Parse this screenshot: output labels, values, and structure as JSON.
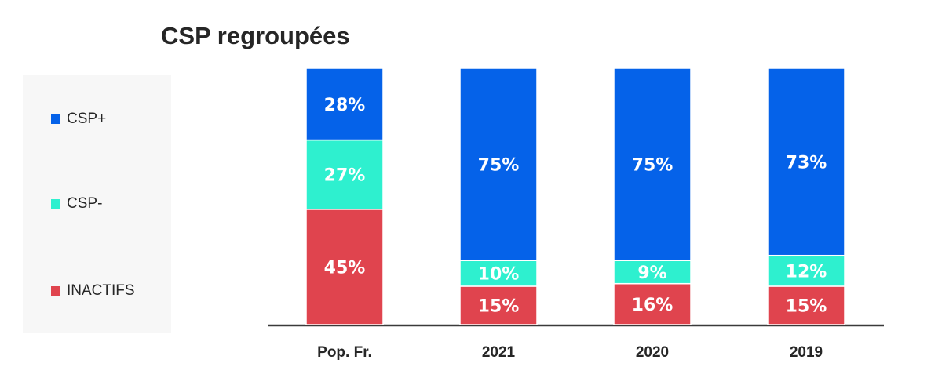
{
  "chart_data": {
    "type": "bar",
    "stacked": true,
    "title": "CSP regroupées",
    "categories": [
      "Pop. Fr.",
      "2021",
      "2020",
      "2019"
    ],
    "series": [
      {
        "name": "INACTIFS",
        "color": "#e0444e",
        "values": [
          45,
          15,
          16,
          15
        ],
        "labels": [
          "45%",
          "15%",
          "16%",
          "15%"
        ]
      },
      {
        "name": "CSP-",
        "color": "#2ef0cf",
        "values": [
          27,
          10,
          9,
          12
        ],
        "labels": [
          "27%",
          "10%",
          "9%",
          "12%"
        ]
      },
      {
        "name": "CSP+",
        "color": "#0562e9",
        "values": [
          28,
          75,
          75,
          73
        ],
        "labels": [
          "28%",
          "75%",
          "75%",
          "73%"
        ]
      }
    ],
    "ylim": [
      0,
      100
    ],
    "legend_position": "left",
    "grid": false
  }
}
